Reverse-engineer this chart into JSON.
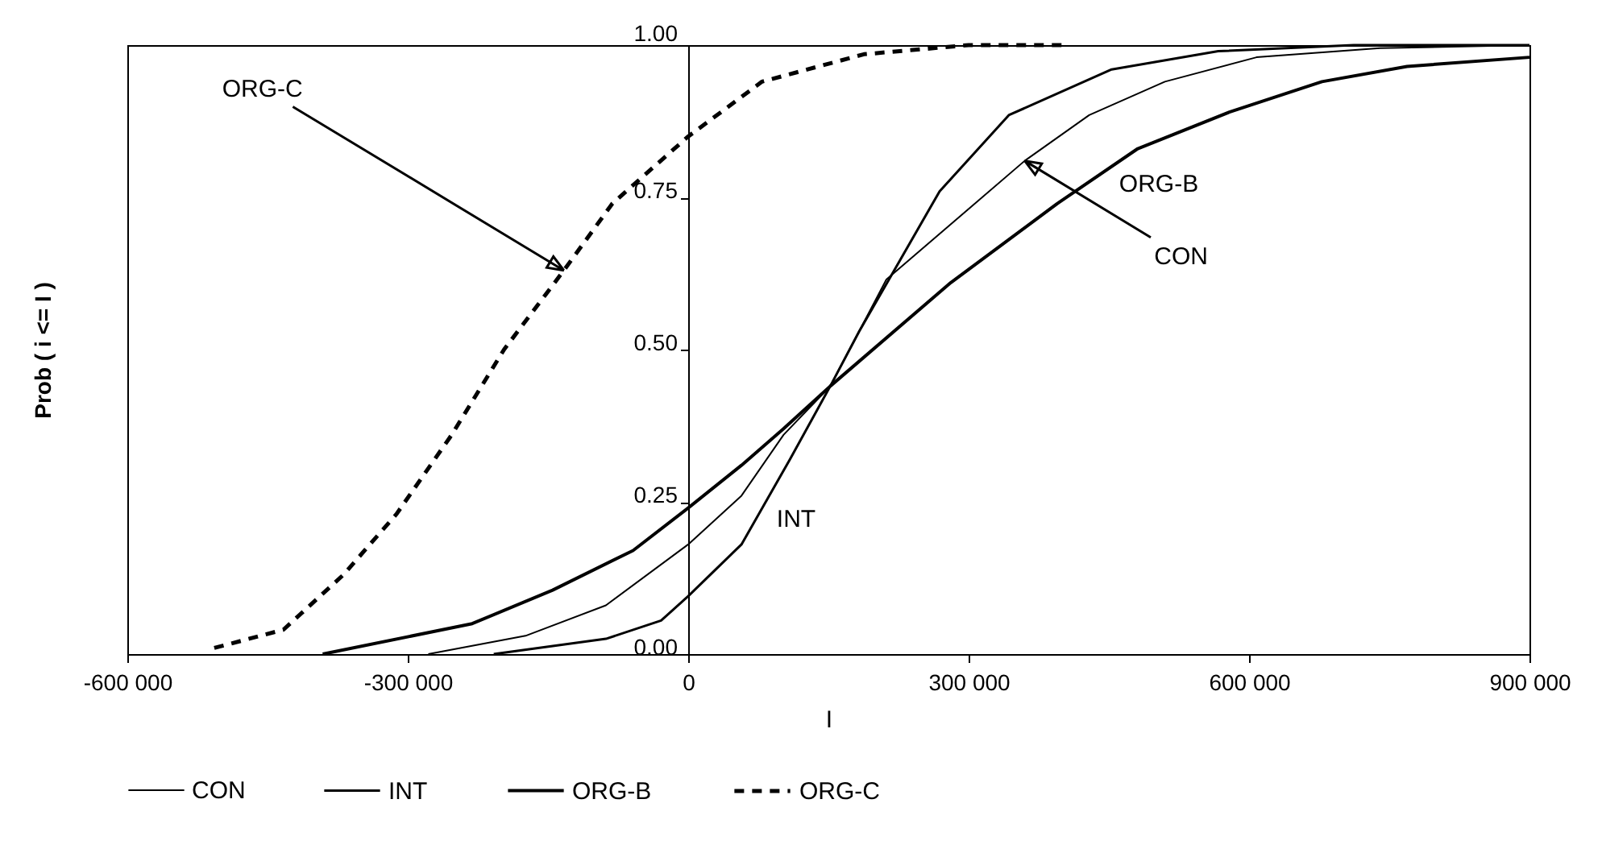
{
  "chart_data": {
    "type": "line",
    "xlabel": "I",
    "ylabel": "Prob ( i <= I )",
    "xlim": [
      -600000,
      900000
    ],
    "ylim": [
      0,
      1
    ],
    "xticks": [
      {
        "value": -600000,
        "label": "-600 000"
      },
      {
        "value": -300000,
        "label": "-300 000"
      },
      0,
      {
        "value": 300000,
        "label": "300 000"
      },
      {
        "value": 600000,
        "label": "600 000"
      },
      {
        "value": 900000,
        "label": "900 000"
      }
    ],
    "yticks": [
      {
        "value": 0,
        "label": "0.00"
      },
      {
        "value": 0.25,
        "label": "0.25"
      },
      {
        "value": 0.5,
        "label": "0.50"
      },
      {
        "value": 0.75,
        "label": "0.75"
      },
      {
        "value": 1,
        "label": "1.00"
      }
    ],
    "grid": false,
    "legend": "bottom",
    "marker": "none",
    "series": [
      {
        "name": "CON",
        "color": "#000000",
        "line_style": "solid",
        "x": [
          -278000,
          -174000,
          -88000,
          0,
          57000,
          102000,
          152000,
          212000,
          360000,
          429000,
          510000,
          608000,
          740000,
          900000
        ],
        "values": [
          0,
          0.03,
          0.08,
          0.18,
          0.26,
          0.36,
          0.44,
          0.615,
          0.81,
          0.885,
          0.94,
          0.98,
          0.995,
          1
        ]
      },
      {
        "name": "INT",
        "color": "#000000",
        "line_style": "solid",
        "x": [
          -208000,
          -88000,
          -29000,
          0,
          57000,
          109000,
          152000,
          183000,
          269000,
          343000,
          453000,
          567000,
          712000,
          900000
        ],
        "values": [
          0,
          0.025,
          0.055,
          0.095,
          0.18,
          0.32,
          0.44,
          0.53,
          0.76,
          0.885,
          0.96,
          0.99,
          1,
          1
        ]
      },
      {
        "name": "ORG-B",
        "color": "#000000",
        "line_style": "solid",
        "x": [
          -391000,
          -231000,
          -145000,
          -59000,
          0,
          57000,
          102000,
          152000,
          281000,
          395000,
          481000,
          579000,
          678000,
          769000,
          900000
        ],
        "values": [
          0,
          0.05,
          0.105,
          0.17,
          0.24,
          0.31,
          0.37,
          0.44,
          0.61,
          0.74,
          0.83,
          0.89,
          0.94,
          0.965,
          0.98
        ]
      },
      {
        "name": "ORG-C",
        "color": "#000000",
        "line_style": "dashed",
        "x": [
          -507000,
          -433000,
          -369000,
          -312000,
          -253000,
          -197000,
          -133000,
          -81000,
          0,
          79000,
          188000,
          300000,
          407000
        ],
        "values": [
          0.01,
          0.04,
          0.13,
          0.23,
          0.36,
          0.5,
          0.63,
          0.74,
          0.85,
          0.94,
          0.985,
          1,
          1
        ]
      }
    ],
    "annotations": [
      {
        "text": "ORG-C",
        "x": -133000,
        "y": 0.63
      },
      {
        "text": "CON",
        "x": 360000,
        "y": 0.81
      },
      "INT",
      "ORG-B"
    ]
  }
}
